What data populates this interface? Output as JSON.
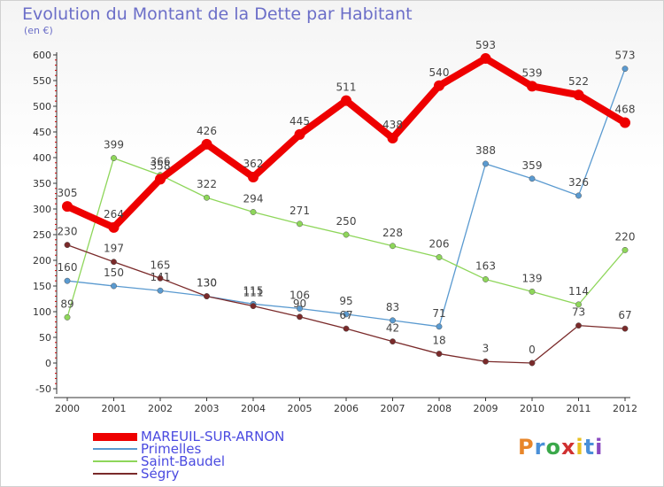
{
  "title": "Evolution du Montant de la Dette par Habitant",
  "subtitle": "(en €)",
  "logo_text": "Proxiti",
  "chart_data": {
    "type": "line",
    "title": "Evolution du Montant de la Dette par Habitant",
    "subtitle": "(en €)",
    "x": [
      "2000",
      "2001",
      "2002",
      "2003",
      "2004",
      "2005",
      "2006",
      "2007",
      "2008",
      "2009",
      "2010",
      "2011",
      "2012"
    ],
    "ylim": [
      -50,
      600
    ],
    "yticks": [
      "-50",
      "0",
      "50",
      "100",
      "150",
      "200",
      "250",
      "300",
      "350",
      "400",
      "450",
      "500",
      "550",
      "600"
    ],
    "grid": false,
    "legend_position": "bottom-left",
    "series": [
      {
        "name": "MAREUIL-SUR-ARNON",
        "color": "#ee0000",
        "values": [
          305,
          264,
          358,
          426,
          362,
          445,
          511,
          438,
          540,
          593,
          539,
          522,
          468
        ]
      },
      {
        "name": "Primelles",
        "color": "#5a9ad0",
        "values": [
          160,
          150,
          141,
          130,
          115,
          106,
          95,
          83,
          71,
          388,
          359,
          326,
          573
        ]
      },
      {
        "name": "Saint-Baudel",
        "color": "#8ed65a",
        "values": [
          89,
          399,
          366,
          322,
          294,
          271,
          250,
          228,
          206,
          163,
          139,
          114,
          220
        ]
      },
      {
        "name": "Ségry",
        "color": "#7a2a2a",
        "values": [
          230,
          197,
          165,
          130,
          111,
          90,
          67,
          42,
          18,
          3,
          0,
          73,
          67
        ]
      }
    ]
  }
}
